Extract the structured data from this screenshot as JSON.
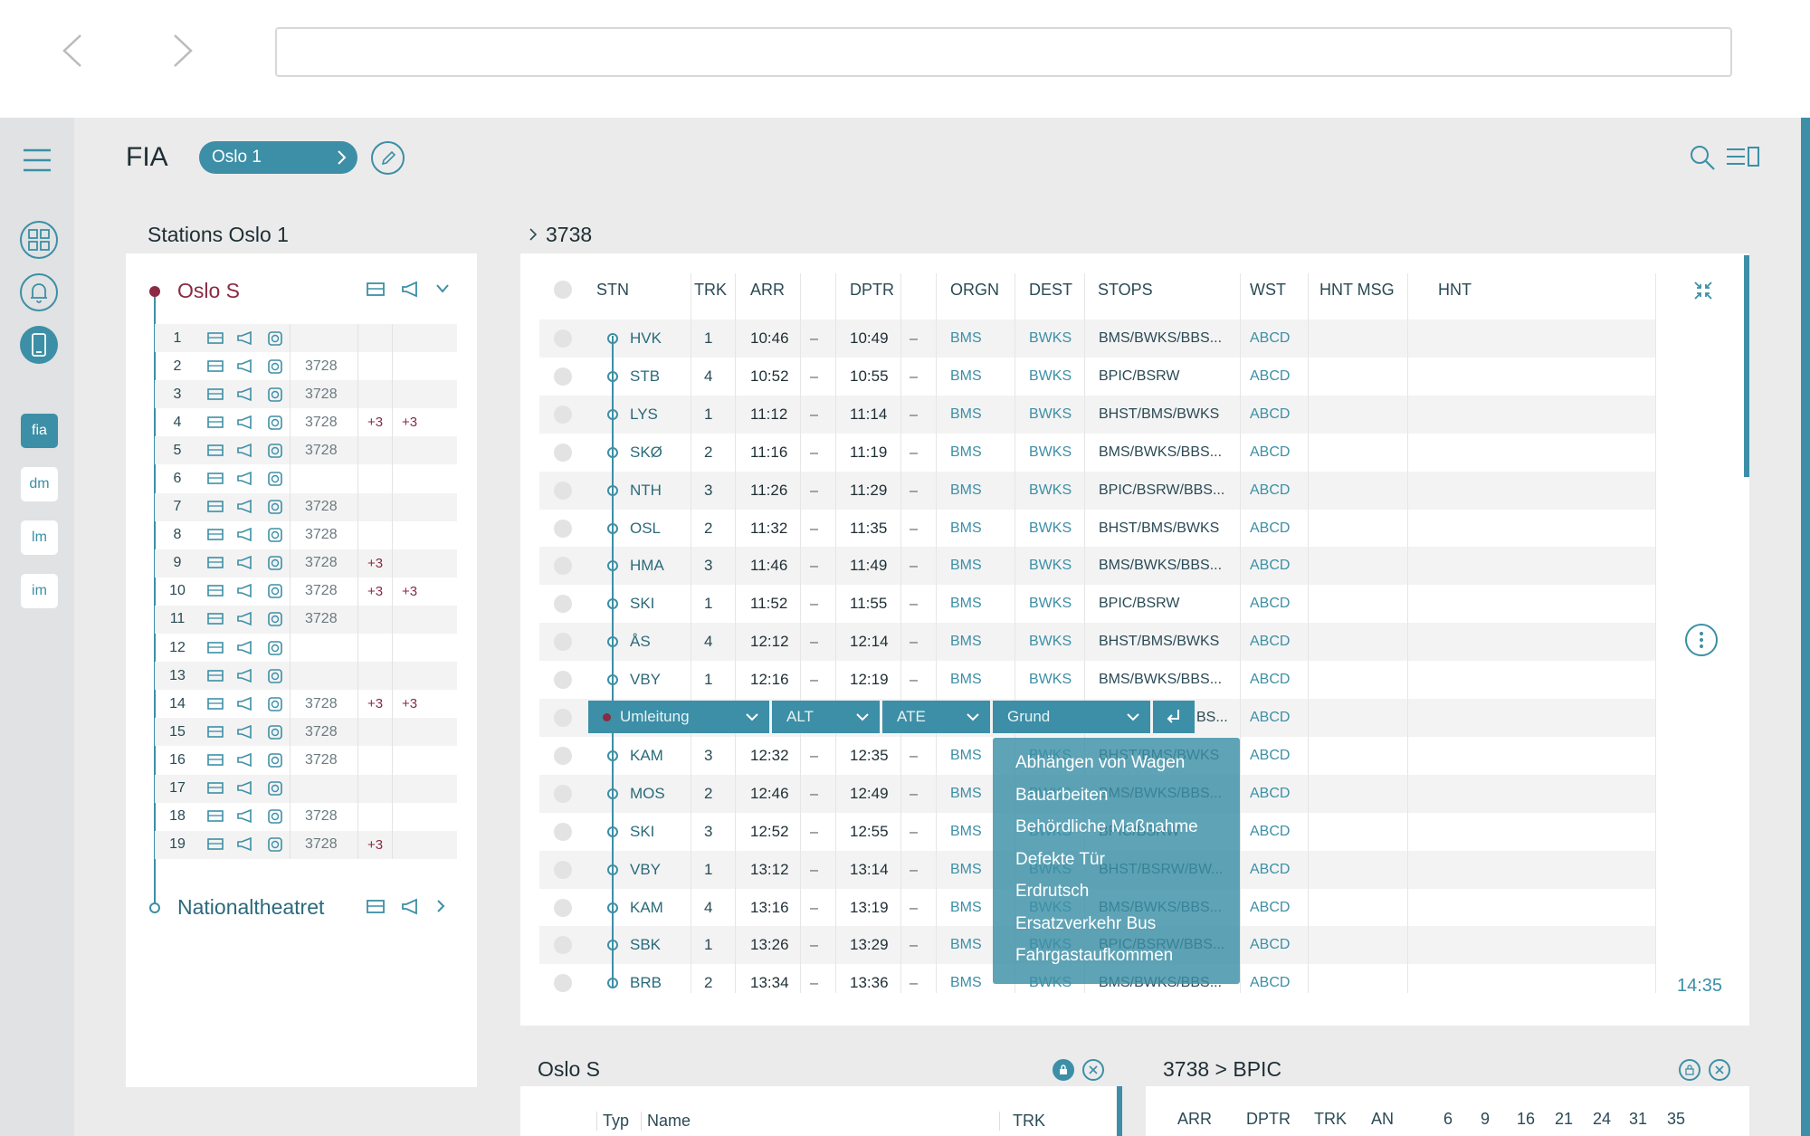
{
  "app": {
    "title": "FIA",
    "context_pill": "Oslo 1"
  },
  "nav": {
    "tabs": [
      "fia",
      "dm",
      "lm",
      "im"
    ]
  },
  "stations_panel": {
    "title": "Stations Oslo 1",
    "first_station": "Oslo S",
    "last_station": "Nationaltheatret",
    "tracks": [
      {
        "n": "1",
        "train": "",
        "p1": "",
        "p2": ""
      },
      {
        "n": "2",
        "train": "3728",
        "p1": "",
        "p2": ""
      },
      {
        "n": "3",
        "train": "3728",
        "p1": "",
        "p2": ""
      },
      {
        "n": "4",
        "train": "3728",
        "p1": "+3",
        "p2": "+3"
      },
      {
        "n": "5",
        "train": "3728",
        "p1": "",
        "p2": ""
      },
      {
        "n": "6",
        "train": "",
        "p1": "",
        "p2": ""
      },
      {
        "n": "7",
        "train": "3728",
        "p1": "",
        "p2": ""
      },
      {
        "n": "8",
        "train": "3728",
        "p1": "",
        "p2": ""
      },
      {
        "n": "9",
        "train": "3728",
        "p1": "+3",
        "p2": ""
      },
      {
        "n": "10",
        "train": "3728",
        "p1": "+3",
        "p2": "+3"
      },
      {
        "n": "11",
        "train": "3728",
        "p1": "",
        "p2": ""
      },
      {
        "n": "12",
        "train": "",
        "p1": "",
        "p2": ""
      },
      {
        "n": "13",
        "train": "",
        "p1": "",
        "p2": ""
      },
      {
        "n": "14",
        "train": "3728",
        "p1": "+3",
        "p2": "+3"
      },
      {
        "n": "15",
        "train": "3728",
        "p1": "",
        "p2": ""
      },
      {
        "n": "16",
        "train": "3728",
        "p1": "",
        "p2": ""
      },
      {
        "n": "17",
        "train": "",
        "p1": "",
        "p2": ""
      },
      {
        "n": "18",
        "train": "3728",
        "p1": "",
        "p2": ""
      },
      {
        "n": "19",
        "train": "3728",
        "p1": "+3",
        "p2": ""
      }
    ]
  },
  "train_panel": {
    "breadcrumb": "3738",
    "columns": {
      "stn": "STN",
      "trk": "TRK",
      "arr": "ARR",
      "dptr": "DPTR",
      "orgn": "ORGN",
      "dest": "DEST",
      "stops": "STOPS",
      "wst": "WST",
      "hnt_msg": "HNT MSG",
      "hnt": "HNT"
    },
    "dash": "–",
    "rows": [
      {
        "stn": "HVK",
        "trk": "1",
        "arr": "10:46",
        "dptr": "10:49",
        "orgn": "BMS",
        "dest": "BWKS",
        "stops": "BMS/BWKS/BBS...",
        "wst": "ABCD"
      },
      {
        "stn": "STB",
        "trk": "4",
        "arr": "10:52",
        "dptr": "10:55",
        "orgn": "BMS",
        "dest": "BWKS",
        "stops": "BPIC/BSRW",
        "wst": "ABCD"
      },
      {
        "stn": "LYS",
        "trk": "1",
        "arr": "11:12",
        "dptr": "11:14",
        "orgn": "BMS",
        "dest": "BWKS",
        "stops": "BHST/BMS/BWKS",
        "wst": "ABCD"
      },
      {
        "stn": "SKØ",
        "trk": "2",
        "arr": "11:16",
        "dptr": "11:19",
        "orgn": "BMS",
        "dest": "BWKS",
        "stops": "BMS/BWKS/BBS...",
        "wst": "ABCD"
      },
      {
        "stn": "NTH",
        "trk": "3",
        "arr": "11:26",
        "dptr": "11:29",
        "orgn": "BMS",
        "dest": "BWKS",
        "stops": "BPIC/BSRW/BBS...",
        "wst": "ABCD"
      },
      {
        "stn": "OSL",
        "trk": "2",
        "arr": "11:32",
        "dptr": "11:35",
        "orgn": "BMS",
        "dest": "BWKS",
        "stops": "BHST/BMS/BWKS",
        "wst": "ABCD"
      },
      {
        "stn": "HMA",
        "trk": "3",
        "arr": "11:46",
        "dptr": "11:49",
        "orgn": "BMS",
        "dest": "BWKS",
        "stops": "BMS/BWKS/BBS...",
        "wst": "ABCD"
      },
      {
        "stn": "SKI",
        "trk": "1",
        "arr": "11:52",
        "dptr": "11:55",
        "orgn": "BMS",
        "dest": "BWKS",
        "stops": "BPIC/BSRW",
        "wst": "ABCD"
      },
      {
        "stn": "ÅS",
        "trk": "4",
        "arr": "12:12",
        "dptr": "12:14",
        "orgn": "BMS",
        "dest": "BWKS",
        "stops": "BHST/BMS/BWKS",
        "wst": "ABCD"
      },
      {
        "stn": "VBY",
        "trk": "1",
        "arr": "12:16",
        "dptr": "12:19",
        "orgn": "BMS",
        "dest": "BWKS",
        "stops": "BMS/BWKS/BBS...",
        "wst": "ABCD"
      },
      {
        "stn": "",
        "trk": "",
        "arr": "",
        "dptr": "",
        "orgn": "",
        "dest": "",
        "stops": "BS...",
        "wst": "ABCD"
      },
      {
        "stn": "KAM",
        "trk": "3",
        "arr": "12:32",
        "dptr": "12:35",
        "orgn": "BMS",
        "dest": "BWKS",
        "stops": "BHST/BMS/BWKS",
        "wst": "ABCD"
      },
      {
        "stn": "MOS",
        "trk": "2",
        "arr": "12:46",
        "dptr": "12:49",
        "orgn": "BMS",
        "dest": "BWKS",
        "stops": "BMS/BWKS/BBS...",
        "wst": "ABCD"
      },
      {
        "stn": "SKI",
        "trk": "3",
        "arr": "12:52",
        "dptr": "12:55",
        "orgn": "BMS",
        "dest": "BWKS",
        "stops": "BPIC/BSRW",
        "wst": "ABCD"
      },
      {
        "stn": "VBY",
        "trk": "1",
        "arr": "13:12",
        "dptr": "13:14",
        "orgn": "BMS",
        "dest": "BWKS",
        "stops": "BHST/BSRW/BW...",
        "wst": "ABCD"
      },
      {
        "stn": "KAM",
        "trk": "4",
        "arr": "13:16",
        "dptr": "13:19",
        "orgn": "BMS",
        "dest": "BWKS",
        "stops": "BMS/BWKS/BBS...",
        "wst": "ABCD"
      },
      {
        "stn": "SBK",
        "trk": "1",
        "arr": "13:26",
        "dptr": "13:29",
        "orgn": "BMS",
        "dest": "BWKS",
        "stops": "BPIC/BSRW/BBS...",
        "wst": "ABCD"
      },
      {
        "stn": "BRB",
        "trk": "2",
        "arr": "13:34",
        "dptr": "13:36",
        "orgn": "BMS",
        "dest": "BWKS",
        "stops": "BMS/BWKS/BBS...",
        "wst": "ABCD"
      }
    ],
    "edit_bar": {
      "type": "Umleitung",
      "alt": "ALT",
      "ate": "ATE",
      "reason": "Grund"
    },
    "reason_options": [
      "Abhängen von Wagen",
      "Bauarbeiten",
      "Behördliche Maßnahme",
      "Defekte Tür",
      "Erdrutsch",
      "Ersatzverkehr Bus",
      "Fahrgastaufkommen"
    ],
    "clock": "14:35"
  },
  "bottom_left": {
    "title": "Oslo S",
    "columns": [
      "Typ",
      "Name",
      "TRK"
    ]
  },
  "bottom_right": {
    "title": "3738 > BPIC",
    "columns": [
      "ARR",
      "DPTR",
      "TRK",
      "AN",
      "6",
      "9",
      "16",
      "21",
      "24",
      "31",
      "35"
    ]
  },
  "colors": {
    "accent": "#3c8fa6",
    "alert": "#8a2a43"
  }
}
